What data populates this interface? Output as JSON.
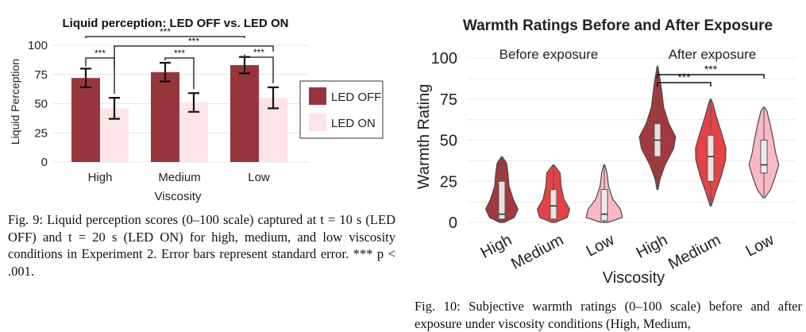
{
  "chart_data": [
    {
      "type": "bar",
      "title": "Liquid perception: LED OFF vs. LED ON",
      "xlabel": "Viscosity",
      "ylabel": "Liquid Perception",
      "categories": [
        "High",
        "Medium",
        "Low"
      ],
      "ylim": [
        0,
        100
      ],
      "yticks": [
        0,
        25,
        50,
        75,
        100
      ],
      "grid": true,
      "legend": "right",
      "series": [
        {
          "name": "LED OFF",
          "color": "#96363c",
          "values": [
            72,
            77,
            83
          ],
          "errors": [
            8,
            8,
            7
          ]
        },
        {
          "name": "LED ON",
          "color": "#fce4e8",
          "values": [
            46,
            51,
            55
          ],
          "errors": [
            9,
            8,
            9
          ]
        }
      ],
      "annotations": [
        {
          "text": "***",
          "from": "High LED OFF",
          "to": "High LED ON"
        },
        {
          "text": "***",
          "from": "Medium LED OFF",
          "to": "Medium LED ON"
        },
        {
          "text": "***",
          "from": "Low LED OFF",
          "to": "Low LED ON"
        },
        {
          "text": "***",
          "from": "High LED OFF",
          "to": "Low LED OFF"
        },
        {
          "text": "***",
          "from": "High LED ON",
          "to": "Low LED ON"
        }
      ]
    },
    {
      "type": "violin",
      "title": "Warmth Ratings Before and After Exposure",
      "xlabel": "Viscosity",
      "ylabel": "Warmth Rating",
      "ylim": [
        0,
        100
      ],
      "yticks": [
        0,
        25,
        50,
        75,
        100
      ],
      "grid": true,
      "groups": [
        "Before exposure",
        "After exposure"
      ],
      "categories": [
        "High",
        "Medium",
        "Low",
        "High",
        "Medium",
        "Low"
      ],
      "violins": [
        {
          "group": "Before exposure",
          "category": "High",
          "color": "#a2393f",
          "min": 0,
          "max": 40,
          "q1": 2,
          "median": 5,
          "q3": 25
        },
        {
          "group": "Before exposure",
          "category": "Medium",
          "color": "#e54245",
          "min": 0,
          "max": 35,
          "q1": 2,
          "median": 10,
          "q3": 20
        },
        {
          "group": "Before exposure",
          "category": "Low",
          "color": "#f9b9c3",
          "min": 0,
          "max": 35,
          "q1": 1,
          "median": 5,
          "q3": 20
        },
        {
          "group": "After exposure",
          "category": "High",
          "color": "#a2393f",
          "min": 20,
          "max": 95,
          "q1": 40,
          "median": 50,
          "q3": 60
        },
        {
          "group": "After exposure",
          "category": "Medium",
          "color": "#e54245",
          "min": 10,
          "max": 75,
          "q1": 25,
          "median": 40,
          "q3": 53
        },
        {
          "group": "After exposure",
          "category": "Low",
          "color": "#f9b9c3",
          "min": 15,
          "max": 70,
          "q1": 30,
          "median": 35,
          "q3": 50
        }
      ],
      "annotations": [
        {
          "text": "***",
          "from": "After High",
          "to": "After Medium"
        },
        {
          "text": "***",
          "from": "After High",
          "to": "After Low"
        }
      ]
    }
  ],
  "captions": {
    "fig9": "Fig. 9: Liquid perception scores (0–100 scale) captured at t = 10 s (LED OFF) and t = 20 s (LED ON) for high, medium, and low viscosity conditions in Experiment 2. Error bars represent standard error. *** p < .001.",
    "fig10": "Fig. 10: Subjective warmth ratings (0–100 scale) before and after exposure under viscosity conditions (High, Medium,"
  }
}
